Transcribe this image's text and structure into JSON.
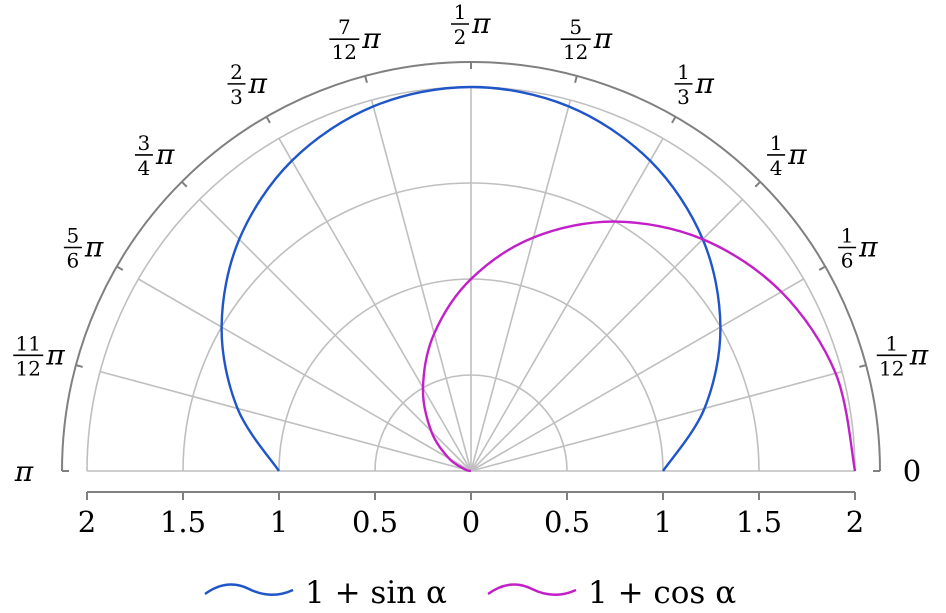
{
  "chart_data": {
    "type": "line",
    "coordinate_system": "polar",
    "domain": "upper-half",
    "title": "",
    "r_range": [
      0,
      2
    ],
    "angle_range_pi": [
      0,
      1
    ],
    "grid": true,
    "legend_position": "bottom-center",
    "radial_ticks": [
      "2",
      "1.5",
      "1",
      "0.5",
      "0",
      "0.5",
      "1",
      "1.5",
      "2"
    ],
    "angular_ticks": [
      {
        "num": "0",
        "den": ""
      },
      {
        "num": "1",
        "den": "12"
      },
      {
        "num": "1",
        "den": "6"
      },
      {
        "num": "1",
        "den": "4"
      },
      {
        "num": "1",
        "den": "3"
      },
      {
        "num": "5",
        "den": "12"
      },
      {
        "num": "1",
        "den": "2"
      },
      {
        "num": "7",
        "den": "12"
      },
      {
        "num": "2",
        "den": "3"
      },
      {
        "num": "3",
        "den": "4"
      },
      {
        "num": "5",
        "den": "6"
      },
      {
        "num": "11",
        "den": "12"
      },
      {
        "num": "π",
        "den": ""
      }
    ],
    "pi_symbol": "π",
    "series": [
      {
        "name": "1 + sin α",
        "color": "#1f55c8",
        "x_alpha_over_pi": [
          0,
          0.0833,
          0.1667,
          0.25,
          0.3333,
          0.4167,
          0.5,
          0.5833,
          0.6667,
          0.75,
          0.8333,
          0.9167,
          1
        ],
        "r": [
          1.0,
          1.259,
          1.5,
          1.707,
          1.866,
          1.966,
          2.0,
          1.966,
          1.866,
          1.707,
          1.5,
          1.259,
          1.0
        ]
      },
      {
        "name": "1 + cos α",
        "color": "#c21fc8",
        "x_alpha_over_pi": [
          0,
          0.0833,
          0.1667,
          0.25,
          0.3333,
          0.4167,
          0.5,
          0.5833,
          0.6667,
          0.75,
          0.8333,
          0.9167,
          1
        ],
        "r": [
          2.0,
          1.966,
          1.866,
          1.707,
          1.5,
          1.259,
          1.0,
          0.741,
          0.5,
          0.293,
          0.134,
          0.034,
          0.0
        ]
      }
    ]
  },
  "legend": {
    "items": [
      {
        "name": "1 + sin α",
        "color": "#1f55c8"
      },
      {
        "name": "1 + cos α",
        "color": "#c21fc8"
      }
    ]
  }
}
